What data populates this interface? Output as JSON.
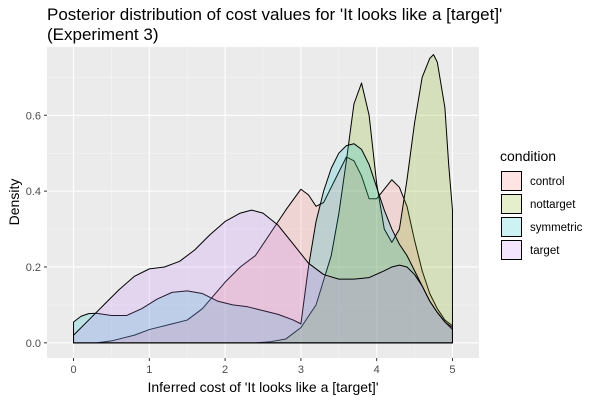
{
  "chart_data": {
    "type": "area",
    "title_lines": [
      "Posterior distribution of cost values for 'It looks like a [target]'",
      "(Experiment 3)"
    ],
    "xlabel": "Inferred cost of 'It looks like a [target]'",
    "ylabel": "Density",
    "xlim": [
      -0.35,
      5.35
    ],
    "ylim": [
      -0.04,
      0.78
    ],
    "x_ticks": [
      0,
      1,
      2,
      3,
      4,
      5
    ],
    "y_ticks": [
      0.0,
      0.2,
      0.4,
      0.6
    ],
    "y_tick_labels": [
      "0.0",
      "0.2",
      "0.4",
      "0.6"
    ],
    "grid": true,
    "legend": {
      "title": "condition",
      "position": "right"
    },
    "series": [
      {
        "name": "control",
        "fill": "#F8766D",
        "points": [
          [
            0,
            0
          ],
          [
            0.3,
            0
          ],
          [
            0.5,
            0.005
          ],
          [
            0.8,
            0.02
          ],
          [
            1.0,
            0.035
          ],
          [
            1.3,
            0.05
          ],
          [
            1.5,
            0.06
          ],
          [
            1.7,
            0.09
          ],
          [
            2.0,
            0.16
          ],
          [
            2.2,
            0.2
          ],
          [
            2.4,
            0.23
          ],
          [
            2.6,
            0.29
          ],
          [
            2.8,
            0.35
          ],
          [
            3.0,
            0.405
          ],
          [
            3.1,
            0.39
          ],
          [
            3.2,
            0.36
          ],
          [
            3.3,
            0.37
          ],
          [
            3.4,
            0.41
          ],
          [
            3.5,
            0.45
          ],
          [
            3.6,
            0.49
          ],
          [
            3.7,
            0.48
          ],
          [
            3.8,
            0.44
          ],
          [
            3.9,
            0.38
          ],
          [
            4.0,
            0.38
          ],
          [
            4.1,
            0.405
          ],
          [
            4.2,
            0.43
          ],
          [
            4.3,
            0.41
          ],
          [
            4.4,
            0.36
          ],
          [
            4.5,
            0.27
          ],
          [
            4.6,
            0.19
          ],
          [
            4.7,
            0.13
          ],
          [
            4.8,
            0.09
          ],
          [
            4.9,
            0.06
          ],
          [
            5.0,
            0.045
          ],
          [
            5.0,
            0
          ]
        ]
      },
      {
        "name": "nottarget",
        "fill": "#7CAE00",
        "points": [
          [
            2.4,
            0
          ],
          [
            2.6,
            0.003
          ],
          [
            2.8,
            0.01
          ],
          [
            3.0,
            0.04
          ],
          [
            3.2,
            0.1
          ],
          [
            3.4,
            0.23
          ],
          [
            3.5,
            0.34
          ],
          [
            3.6,
            0.48
          ],
          [
            3.7,
            0.63
          ],
          [
            3.8,
            0.685
          ],
          [
            3.9,
            0.6
          ],
          [
            4.0,
            0.42
          ],
          [
            4.1,
            0.3
          ],
          [
            4.2,
            0.265
          ],
          [
            4.3,
            0.3
          ],
          [
            4.4,
            0.43
          ],
          [
            4.5,
            0.58
          ],
          [
            4.6,
            0.7
          ],
          [
            4.7,
            0.75
          ],
          [
            4.75,
            0.76
          ],
          [
            4.8,
            0.74
          ],
          [
            4.9,
            0.62
          ],
          [
            4.95,
            0.47
          ],
          [
            5.0,
            0.35
          ],
          [
            5.0,
            0
          ]
        ]
      },
      {
        "name": "symmetric",
        "fill": "#00BFC4",
        "points": [
          [
            0,
            0.055
          ],
          [
            0.1,
            0.07
          ],
          [
            0.2,
            0.077
          ],
          [
            0.3,
            0.078
          ],
          [
            0.5,
            0.072
          ],
          [
            0.7,
            0.072
          ],
          [
            0.9,
            0.09
          ],
          [
            1.1,
            0.115
          ],
          [
            1.3,
            0.133
          ],
          [
            1.5,
            0.137
          ],
          [
            1.7,
            0.13
          ],
          [
            1.9,
            0.11
          ],
          [
            2.1,
            0.1
          ],
          [
            2.3,
            0.095
          ],
          [
            2.5,
            0.085
          ],
          [
            2.7,
            0.075
          ],
          [
            2.9,
            0.06
          ],
          [
            3.0,
            0.05
          ],
          [
            3.1,
            0.2
          ],
          [
            3.2,
            0.32
          ],
          [
            3.3,
            0.4
          ],
          [
            3.4,
            0.46
          ],
          [
            3.5,
            0.5
          ],
          [
            3.6,
            0.52
          ],
          [
            3.7,
            0.525
          ],
          [
            3.8,
            0.51
          ],
          [
            3.9,
            0.47
          ],
          [
            4.0,
            0.41
          ],
          [
            4.1,
            0.35
          ],
          [
            4.2,
            0.3
          ],
          [
            4.3,
            0.26
          ],
          [
            4.4,
            0.23
          ],
          [
            4.5,
            0.19
          ],
          [
            4.6,
            0.15
          ],
          [
            4.7,
            0.11
          ],
          [
            4.8,
            0.08
          ],
          [
            4.9,
            0.055
          ],
          [
            5.0,
            0.035
          ],
          [
            5.0,
            0
          ]
        ]
      },
      {
        "name": "target",
        "fill": "#C77CFF",
        "points": [
          [
            0,
            0.02
          ],
          [
            0.2,
            0.06
          ],
          [
            0.4,
            0.1
          ],
          [
            0.6,
            0.14
          ],
          [
            0.8,
            0.175
          ],
          [
            1.0,
            0.195
          ],
          [
            1.2,
            0.2
          ],
          [
            1.4,
            0.215
          ],
          [
            1.6,
            0.245
          ],
          [
            1.8,
            0.285
          ],
          [
            2.0,
            0.32
          ],
          [
            2.2,
            0.342
          ],
          [
            2.35,
            0.35
          ],
          [
            2.5,
            0.342
          ],
          [
            2.7,
            0.31
          ],
          [
            2.9,
            0.26
          ],
          [
            3.1,
            0.21
          ],
          [
            3.3,
            0.18
          ],
          [
            3.5,
            0.168
          ],
          [
            3.7,
            0.168
          ],
          [
            3.9,
            0.172
          ],
          [
            4.1,
            0.19
          ],
          [
            4.2,
            0.2
          ],
          [
            4.3,
            0.205
          ],
          [
            4.4,
            0.2
          ],
          [
            4.5,
            0.18
          ],
          [
            4.6,
            0.15
          ],
          [
            4.7,
            0.11
          ],
          [
            4.8,
            0.08
          ],
          [
            4.9,
            0.055
          ],
          [
            5.0,
            0.04
          ],
          [
            5.0,
            0
          ]
        ]
      }
    ]
  }
}
